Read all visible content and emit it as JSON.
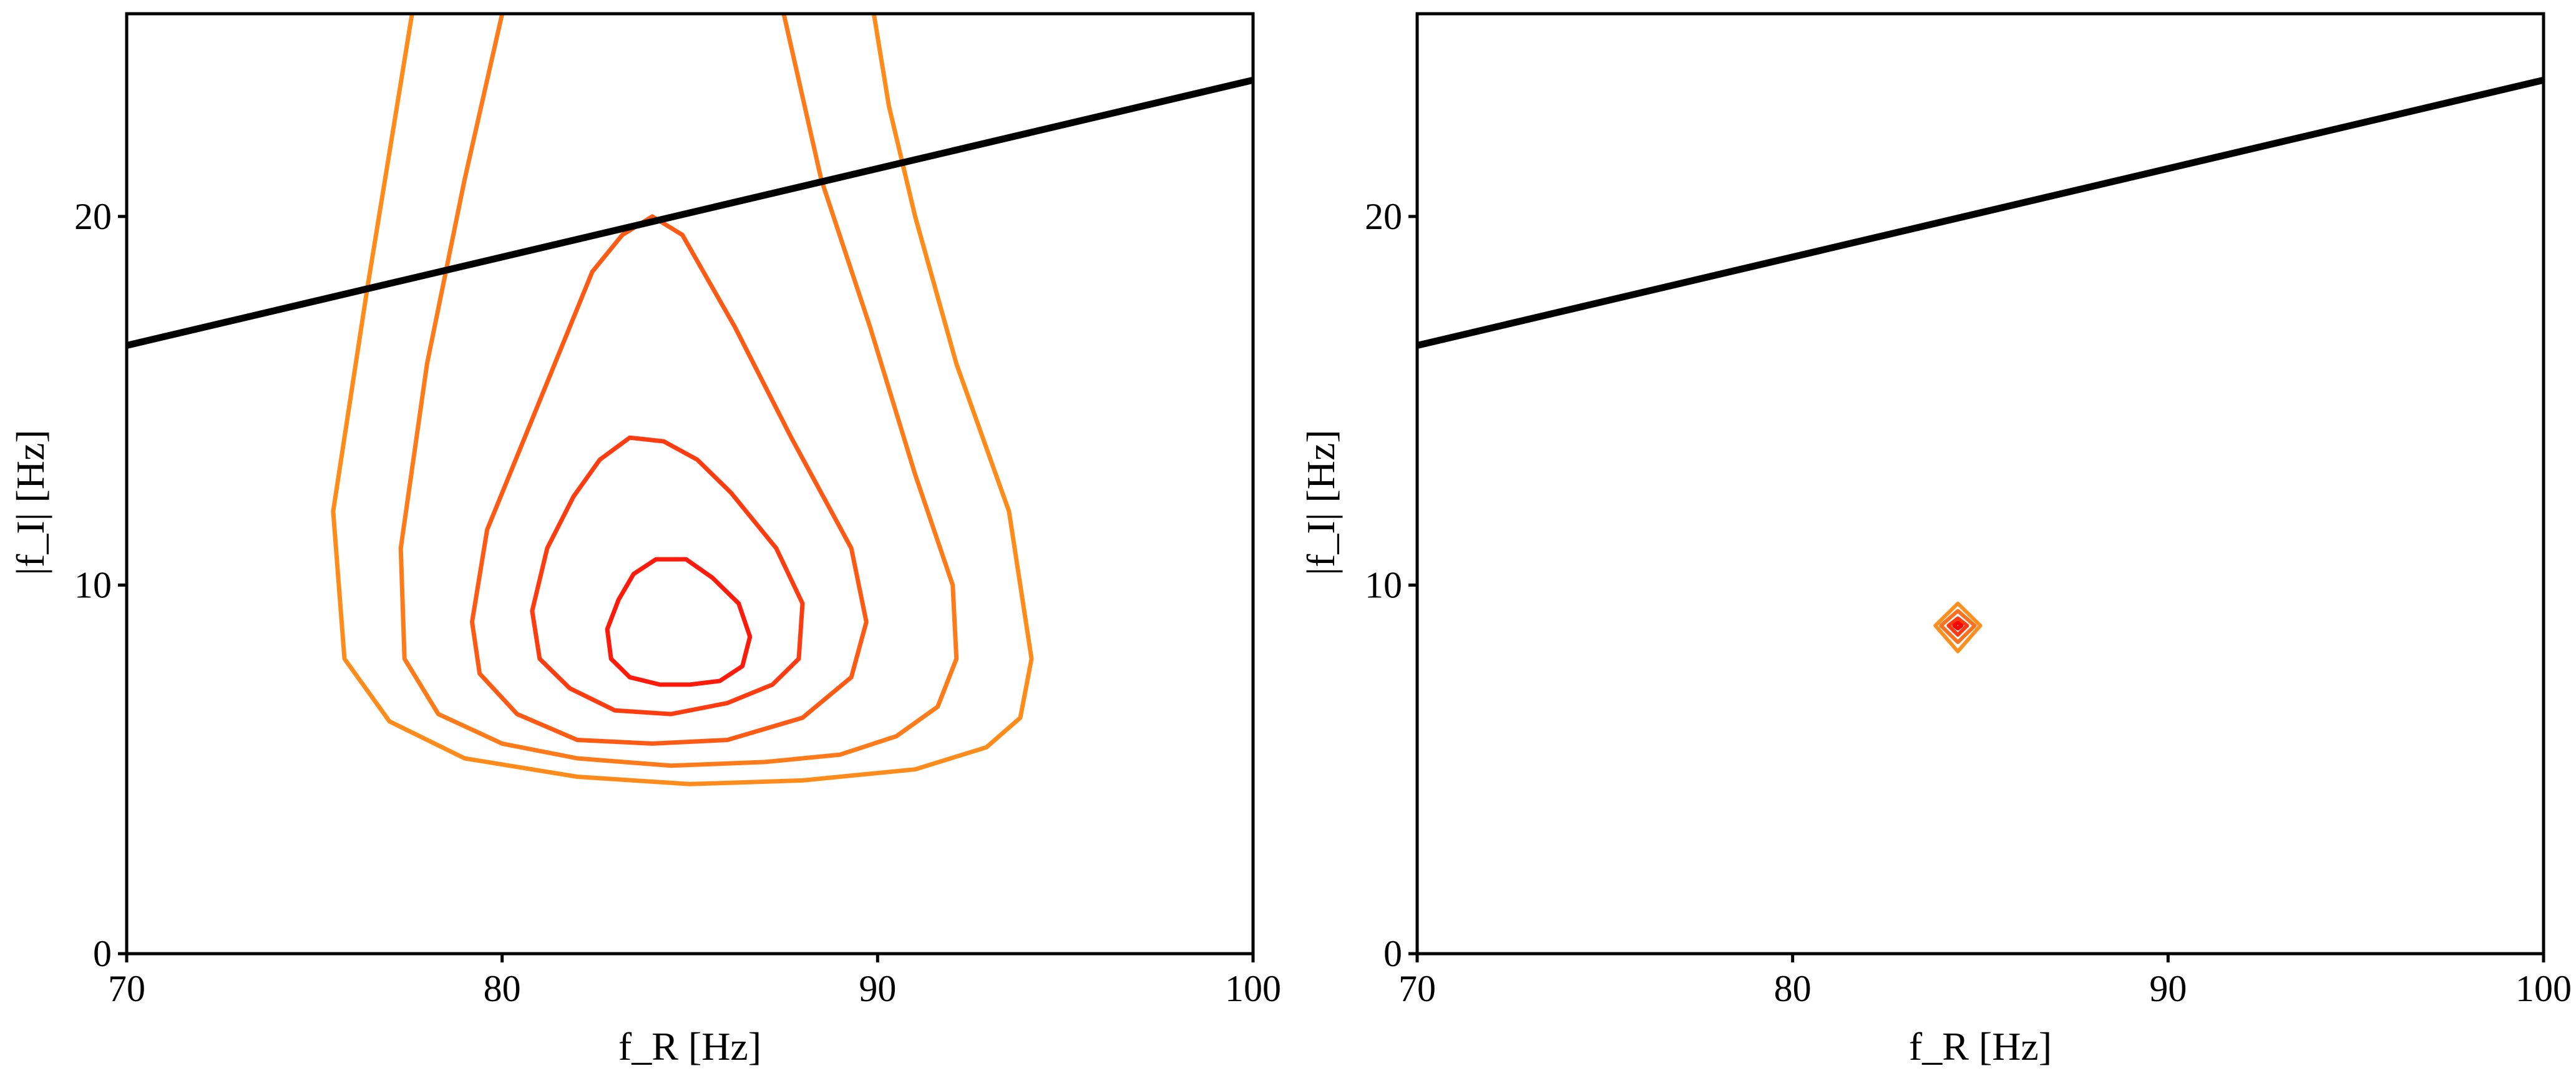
{
  "chart_data": [
    {
      "type": "contour",
      "xlabel": "f_R [Hz]",
      "ylabel": "|f_I| [Hz]",
      "xlim": [
        70,
        100
      ],
      "ylim": [
        0,
        25.5
      ],
      "xticks": [
        70,
        80,
        90,
        100
      ],
      "yticks": [
        0,
        10,
        20
      ],
      "grid": false,
      "line": {
        "name": "",
        "color": "#000000",
        "x": [
          70,
          100
        ],
        "y": [
          16.5,
          23.7
        ]
      },
      "contours": [
        {
          "color": "#FF8C1A",
          "points": [
            [
              77.6,
              25.5
            ],
            [
              76.4,
              18
            ],
            [
              75.5,
              12
            ],
            [
              75.8,
              8
            ],
            [
              77,
              6.3
            ],
            [
              79,
              5.3
            ],
            [
              82,
              4.8
            ],
            [
              85,
              4.6
            ],
            [
              88,
              4.7
            ],
            [
              91,
              5
            ],
            [
              92.9,
              5.6
            ],
            [
              93.8,
              6.4
            ],
            [
              94.1,
              8
            ],
            [
              93.5,
              12
            ],
            [
              92.1,
              16
            ],
            [
              91,
              20
            ],
            [
              90.3,
              23
            ],
            [
              89.9,
              25.5
            ]
          ]
        },
        {
          "color": "#FF7A18",
          "points": [
            [
              80,
              25.5
            ],
            [
              79,
              21
            ],
            [
              78,
              16
            ],
            [
              77.3,
              11
            ],
            [
              77.4,
              8
            ],
            [
              78.3,
              6.5
            ],
            [
              80,
              5.7
            ],
            [
              82,
              5.3
            ],
            [
              84.5,
              5.1
            ],
            [
              87,
              5.2
            ],
            [
              89,
              5.4
            ],
            [
              90.5,
              5.9
            ],
            [
              91.6,
              6.7
            ],
            [
              92.1,
              8
            ],
            [
              92,
              10
            ],
            [
              91,
              13
            ],
            [
              89.8,
              17
            ],
            [
              88.5,
              21
            ],
            [
              87.5,
              25.5
            ]
          ]
        },
        {
          "color": "#FF5A14",
          "points": [
            [
              83.2,
              19.5
            ],
            [
              84,
              20
            ],
            [
              84.8,
              19.5
            ],
            [
              86.2,
              17
            ],
            [
              87.7,
              14
            ],
            [
              89.3,
              11
            ],
            [
              89.7,
              9
            ],
            [
              89.3,
              7.5
            ],
            [
              88,
              6.4
            ],
            [
              86,
              5.8
            ],
            [
              84,
              5.7
            ],
            [
              82,
              5.8
            ],
            [
              80.4,
              6.5
            ],
            [
              79.4,
              7.6
            ],
            [
              79.2,
              9
            ],
            [
              79.6,
              11.5
            ],
            [
              80.6,
              14
            ],
            [
              81.8,
              17
            ],
            [
              82.4,
              18.5
            ],
            [
              83.2,
              19.5
            ]
          ]
        },
        {
          "color": "#FF3C10",
          "points": [
            [
              83.4,
              14
            ],
            [
              84.3,
              13.9
            ],
            [
              85.2,
              13.4
            ],
            [
              86.1,
              12.5
            ],
            [
              87.3,
              11
            ],
            [
              88,
              9.5
            ],
            [
              87.9,
              8
            ],
            [
              87.2,
              7.3
            ],
            [
              86,
              6.8
            ],
            [
              84.5,
              6.5
            ],
            [
              83,
              6.6
            ],
            [
              81.8,
              7.2
            ],
            [
              81,
              8
            ],
            [
              80.8,
              9.3
            ],
            [
              81.2,
              11
            ],
            [
              81.9,
              12.4
            ],
            [
              82.6,
              13.4
            ],
            [
              83.4,
              14
            ]
          ]
        },
        {
          "color": "#FF1A0A",
          "points": [
            [
              84.1,
              10.7
            ],
            [
              84.9,
              10.7
            ],
            [
              85.6,
              10.2
            ],
            [
              86.3,
              9.5
            ],
            [
              86.6,
              8.6
            ],
            [
              86.4,
              7.8
            ],
            [
              85.8,
              7.4
            ],
            [
              85,
              7.3
            ],
            [
              84.2,
              7.3
            ],
            [
              83.4,
              7.5
            ],
            [
              82.9,
              8
            ],
            [
              82.8,
              8.8
            ],
            [
              83.1,
              9.6
            ],
            [
              83.5,
              10.3
            ],
            [
              84.1,
              10.7
            ]
          ]
        }
      ]
    },
    {
      "type": "contour",
      "xlabel": "f_R [Hz]",
      "ylabel": "|f_I| [Hz]",
      "xlim": [
        70,
        100
      ],
      "ylim": [
        0,
        25.5
      ],
      "xticks": [
        70,
        80,
        90,
        100
      ],
      "yticks": [
        0,
        10,
        20
      ],
      "grid": false,
      "line": {
        "name": "",
        "color": "#000000",
        "x": [
          70,
          100
        ],
        "y": [
          16.5,
          23.7
        ]
      },
      "contours": [
        {
          "color": "#FF9020",
          "points": [
            [
              84.4,
              9.5
            ],
            [
              85,
              8.9
            ],
            [
              84.4,
              8.2
            ],
            [
              83.8,
              8.9
            ],
            [
              84.4,
              9.5
            ]
          ]
        },
        {
          "color": "#FF7020",
          "points": [
            [
              84.4,
              9.3
            ],
            [
              84.85,
              8.9
            ],
            [
              84.4,
              8.45
            ],
            [
              83.95,
              8.9
            ],
            [
              84.4,
              9.3
            ]
          ]
        },
        {
          "color": "#FF3A10",
          "points": [
            [
              84.4,
              9.1
            ],
            [
              84.65,
              8.9
            ],
            [
              84.4,
              8.65
            ],
            [
              84.15,
              8.9
            ],
            [
              84.4,
              9.1
            ]
          ]
        },
        {
          "color": "#FF0000",
          "points": [
            [
              84.4,
              8.98
            ],
            [
              84.5,
              8.9
            ],
            [
              84.4,
              8.82
            ],
            [
              84.3,
              8.9
            ],
            [
              84.4,
              8.98
            ]
          ]
        }
      ]
    }
  ]
}
